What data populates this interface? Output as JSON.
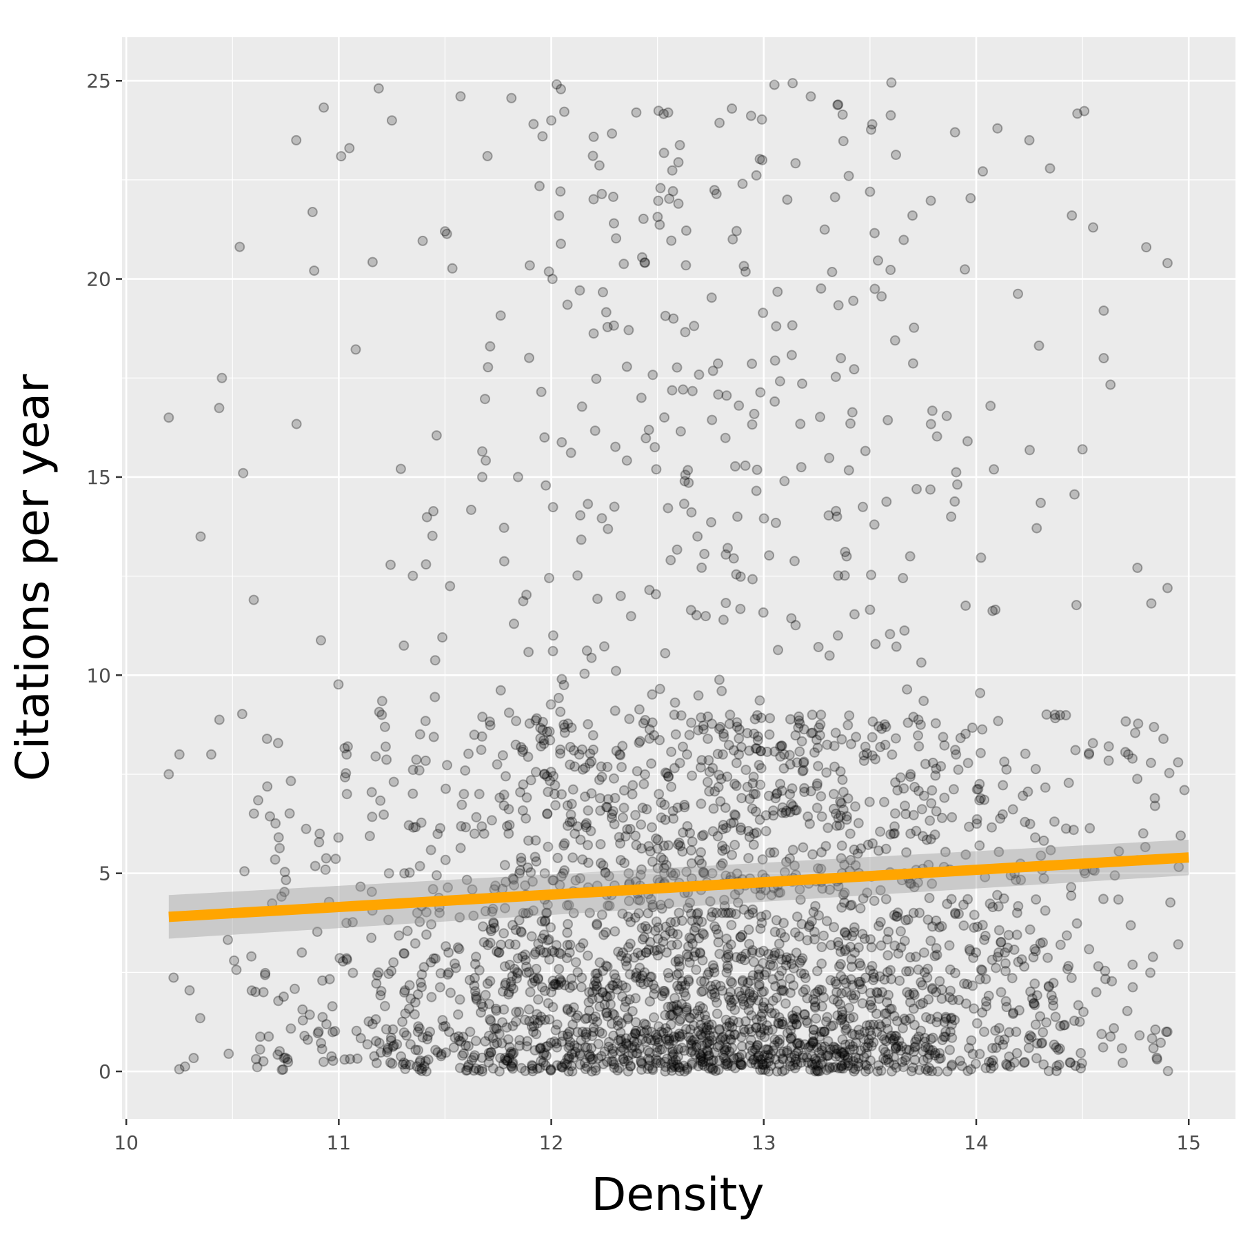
{
  "chart_data": {
    "type": "scatter",
    "title": "",
    "xlabel": "Density",
    "ylabel": "Citations per year",
    "xlim": [
      9.98,
      15.22
    ],
    "ylim": [
      -1.2,
      26.1
    ],
    "x_ticks": [
      10,
      11,
      12,
      13,
      14,
      15
    ],
    "y_ticks": [
      0,
      5,
      10,
      15,
      20,
      25
    ],
    "grid": true,
    "legend": "none",
    "point_color": "#000000",
    "point_opacity": 0.2,
    "approx_point_count": 3000,
    "points_sample": [
      [
        10.2,
        16.5
      ],
      [
        10.2,
        7.5
      ],
      [
        10.25,
        8.0
      ],
      [
        10.35,
        13.5
      ],
      [
        10.4,
        8.0
      ],
      [
        10.45,
        17.5
      ],
      [
        10.55,
        15.1
      ],
      [
        10.6,
        11.9
      ],
      [
        10.8,
        23.5
      ],
      [
        11.05,
        23.3
      ],
      [
        11.25,
        24.0
      ],
      [
        11.5,
        21.2
      ],
      [
        11.7,
        23.1
      ],
      [
        12.0,
        24.0
      ],
      [
        12.4,
        24.2
      ],
      [
        12.55,
        24.2
      ],
      [
        12.85,
        24.3
      ],
      [
        13.05,
        24.9
      ],
      [
        13.35,
        24.4
      ],
      [
        13.9,
        23.7
      ],
      [
        14.1,
        23.8
      ],
      [
        14.25,
        23.5
      ],
      [
        14.45,
        21.6
      ],
      [
        14.55,
        21.3
      ],
      [
        14.8,
        20.8
      ],
      [
        14.9,
        20.4
      ],
      [
        14.9,
        12.2
      ],
      [
        14.95,
        7.8
      ],
      [
        14.98,
        7.1
      ],
      [
        14.6,
        19.2
      ],
      [
        14.6,
        18.0
      ],
      [
        14.5,
        15.7
      ],
      [
        13.4,
        22.6
      ],
      [
        13.5,
        22.2
      ],
      [
        13.7,
        21.6
      ],
      [
        12.9,
        22.4
      ]
    ],
    "trend_line": {
      "method": "lm",
      "color": "#FFA500",
      "x": [
        10.2,
        15.0
      ],
      "y": [
        3.9,
        5.4
      ],
      "ci_low": [
        3.35,
        4.95
      ],
      "ci_high": [
        4.45,
        5.85
      ],
      "ci_color": "#999999"
    }
  }
}
